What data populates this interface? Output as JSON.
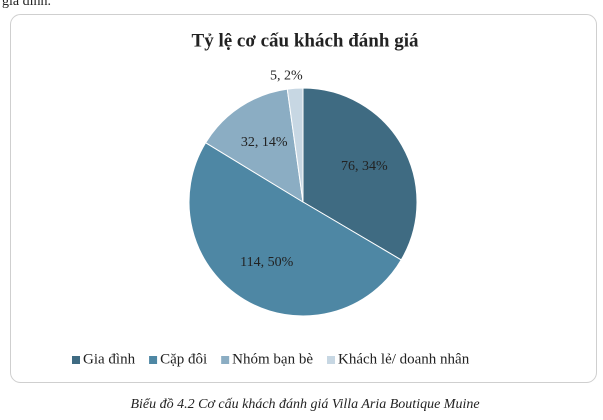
{
  "top_text": "gia đình.",
  "chart_data": {
    "type": "pie",
    "title": "Tỷ lệ cơ cấu khách đánh giá",
    "categories": [
      "Gia đình",
      "Cặp đôi",
      "Nhóm bạn bè",
      "Khách lẻ/ doanh nhân"
    ],
    "values": [
      76,
      114,
      32,
      5
    ],
    "value_labels": [
      "76, 34%",
      "114, 50%",
      "32, 14%",
      "5, 2%"
    ],
    "colors": [
      "#3f6b82",
      "#4e87a4",
      "#8badc3",
      "#c7d7e3"
    ],
    "legend": "bottom"
  },
  "caption": "Biểu đồ 4.2 Cơ cấu khách đánh giá Villa Aria Boutique Muine"
}
